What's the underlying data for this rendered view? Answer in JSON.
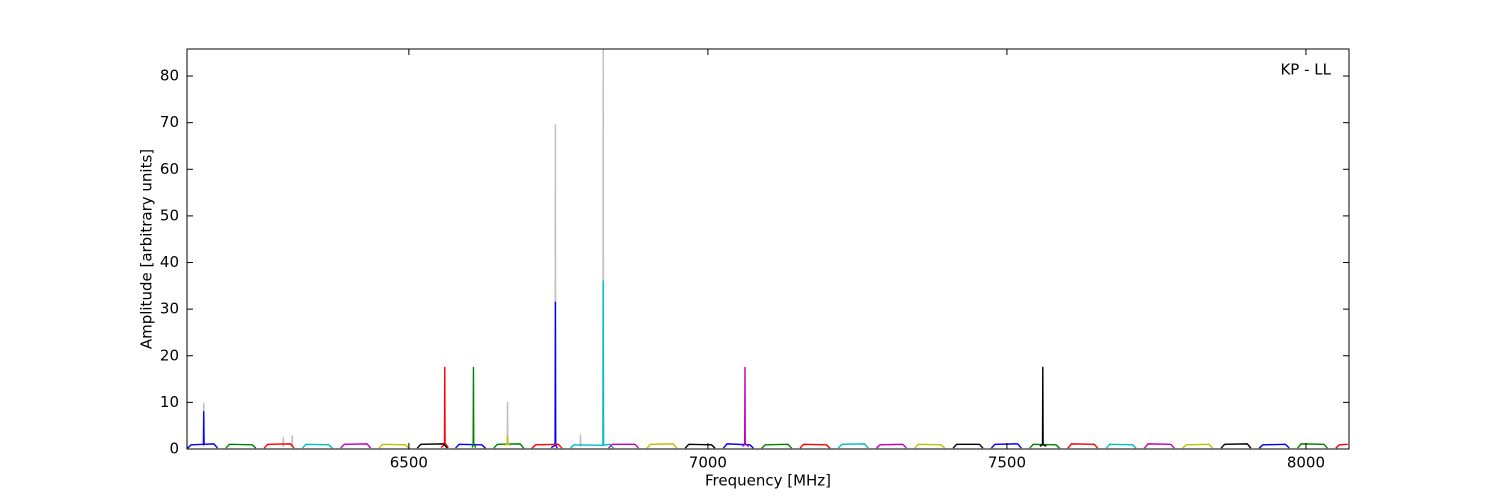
{
  "chart_data": {
    "type": "line",
    "x_label": "Frequency [MHz]",
    "y_label": "Amplitude [arbitrary units]",
    "annotation": "KP - LL",
    "xlim": [
      6129,
      8072
    ],
    "ylim": [
      0,
      85.8
    ],
    "xticks": [
      6500,
      7000,
      7500,
      8000
    ],
    "yticks": [
      0,
      10,
      20,
      30,
      40,
      50,
      60,
      70,
      80
    ],
    "grid": false,
    "series": [
      {
        "color": "#bebebe",
        "x": [
          6156.5,
          6157,
          6157.5,
          6157.5,
          6289.5,
          6290,
          6290.5,
          6290.5,
          6304.5,
          6305,
          6305.5,
          6305.5,
          6664.5,
          6665,
          6665.5,
          6665.5,
          6744.5,
          6745,
          6745.5,
          6745.5,
          6786.5,
          6787,
          6787.5,
          6787.5,
          6824.5,
          6825,
          6825.5
        ],
        "values": [
          0.5,
          9.8,
          0.5,
          null,
          0.5,
          2.5,
          0.5,
          null,
          0.5,
          2.8,
          0.5,
          null,
          0.8,
          10,
          0.8,
          null,
          0.8,
          69.5,
          0.8,
          null,
          0.5,
          3,
          0.5,
          null,
          0.8,
          86,
          0.8
        ]
      },
      {
        "color": "#0000ff",
        "x": [
          6130,
          6136,
          6156.5,
          6157,
          6157.5,
          6174,
          6180,
          6180,
          6578,
          6584,
          6622,
          6628,
          6628,
          6738,
          6744.5,
          6745,
          6745.5,
          6748,
          6748,
          7026,
          7032,
          7070,
          7076,
          7076,
          7474,
          7480,
          7518,
          7524,
          7524,
          7922,
          7928,
          7966,
          7972
        ],
        "values": [
          0.2,
          0.9,
          1.0,
          8,
          1.0,
          1.1,
          0.2,
          null,
          0.2,
          1.0,
          0.9,
          0.2,
          null,
          0.3,
          0.8,
          31.5,
          0.9,
          0.2,
          null,
          0.2,
          1.1,
          0.9,
          0.2,
          null,
          0.2,
          1.0,
          1.1,
          0.2,
          null,
          0.2,
          0.9,
          1.0,
          0.2
        ]
      },
      {
        "color": "#008000",
        "x": [
          6194,
          6200,
          6238,
          6244,
          6244,
          6606,
          6607.5,
          6608,
          6608.5,
          6612,
          6612,
          6642,
          6648,
          6686,
          6692,
          6692,
          7090,
          7096,
          7134,
          7140,
          7140,
          7538,
          7544,
          7582,
          7588,
          7588,
          7986,
          7992,
          8030,
          8036
        ],
        "values": [
          0.2,
          1.0,
          0.9,
          0.2,
          null,
          0.3,
          1.0,
          17.5,
          1.0,
          0.3,
          null,
          0.2,
          1.0,
          1.1,
          0.2,
          null,
          0.2,
          0.9,
          1.0,
          0.2,
          null,
          0.2,
          1.0,
          0.9,
          0.2,
          null,
          0.2,
          1.1,
          1.0,
          0.2
        ]
      },
      {
        "color": "#ff0000",
        "x": [
          6258,
          6264,
          6302,
          6308,
          6308,
          6554,
          6559.5,
          6560,
          6560.5,
          6566,
          6566,
          6706,
          6712,
          6750,
          6756,
          6756,
          7154,
          7160,
          7198,
          7204,
          7204,
          7602,
          7608,
          7646,
          7652,
          7652,
          8050,
          8056,
          8070
        ],
        "values": [
          0.2,
          1.0,
          1.1,
          0.2,
          null,
          0.3,
          1.0,
          17.5,
          1.2,
          0.3,
          null,
          0.2,
          0.9,
          1.0,
          0.2,
          null,
          0.2,
          1.0,
          0.9,
          0.2,
          null,
          0.2,
          1.1,
          1.0,
          0.2,
          null,
          0.2,
          0.9,
          1.0
        ]
      },
      {
        "color": "#00bfbf",
        "x": [
          6322,
          6328,
          6366,
          6372,
          6372,
          6770,
          6776,
          6824.5,
          6825,
          6825.5,
          6836,
          6842,
          6842,
          7218,
          7224,
          7262,
          7268,
          7268,
          7666,
          7672,
          7710,
          7716
        ],
        "values": [
          0.2,
          1.0,
          0.9,
          0.2,
          null,
          0.2,
          0.9,
          0.8,
          36,
          0.8,
          1.0,
          0.2,
          null,
          0.2,
          1.0,
          1.1,
          0.2,
          null,
          0.2,
          1.0,
          0.9,
          0.2
        ]
      },
      {
        "color": "#bf00bf",
        "x": [
          6386,
          6392,
          6430,
          6436,
          6436,
          6834,
          6840,
          6878,
          6884,
          6884,
          7058,
          7061.5,
          7062,
          7062.5,
          7068,
          7068,
          7282,
          7288,
          7326,
          7332,
          7332,
          7730,
          7736,
          7774,
          7780
        ],
        "values": [
          0.2,
          1.0,
          1.1,
          0.2,
          null,
          0.2,
          1.0,
          1.0,
          0.2,
          null,
          0.5,
          1.2,
          17.5,
          1.2,
          0.5,
          null,
          0.2,
          0.9,
          1.0,
          0.2,
          null,
          0.2,
          1.1,
          1.0,
          0.2
        ]
      },
      {
        "color": "#bfbf00",
        "x": [
          6450,
          6456,
          6494,
          6500,
          6500,
          6660,
          6664.5,
          6665,
          6665.5,
          6670,
          6670,
          6898,
          6904,
          6942,
          6948,
          6948,
          7346,
          7352,
          7390,
          7396,
          7396,
          7794,
          7800,
          7838,
          7844
        ],
        "values": [
          0.2,
          1.0,
          0.9,
          0.2,
          null,
          0.8,
          1.0,
          2.8,
          1.0,
          0.8,
          null,
          0.2,
          1.0,
          1.1,
          0.2,
          null,
          0.2,
          1.0,
          0.9,
          0.2,
          null,
          0.2,
          0.9,
          1.0,
          0.2
        ]
      },
      {
        "color": "#000000",
        "x": [
          6514,
          6520,
          6558,
          6564,
          6564,
          6962,
          6968,
          7006,
          7012,
          7012,
          7410,
          7416,
          7454,
          7460,
          7460,
          7555,
          7559.5,
          7560,
          7560.5,
          7566,
          7566,
          7858,
          7864,
          7902,
          7908
        ],
        "values": [
          0.2,
          1.0,
          1.1,
          0.2,
          null,
          0.2,
          1.0,
          0.9,
          0.2,
          null,
          0.2,
          1.0,
          1.0,
          0.2,
          null,
          0.6,
          0.9,
          17.5,
          0.9,
          0.6,
          null,
          0.2,
          1.0,
          1.1,
          0.2
        ]
      }
    ]
  }
}
